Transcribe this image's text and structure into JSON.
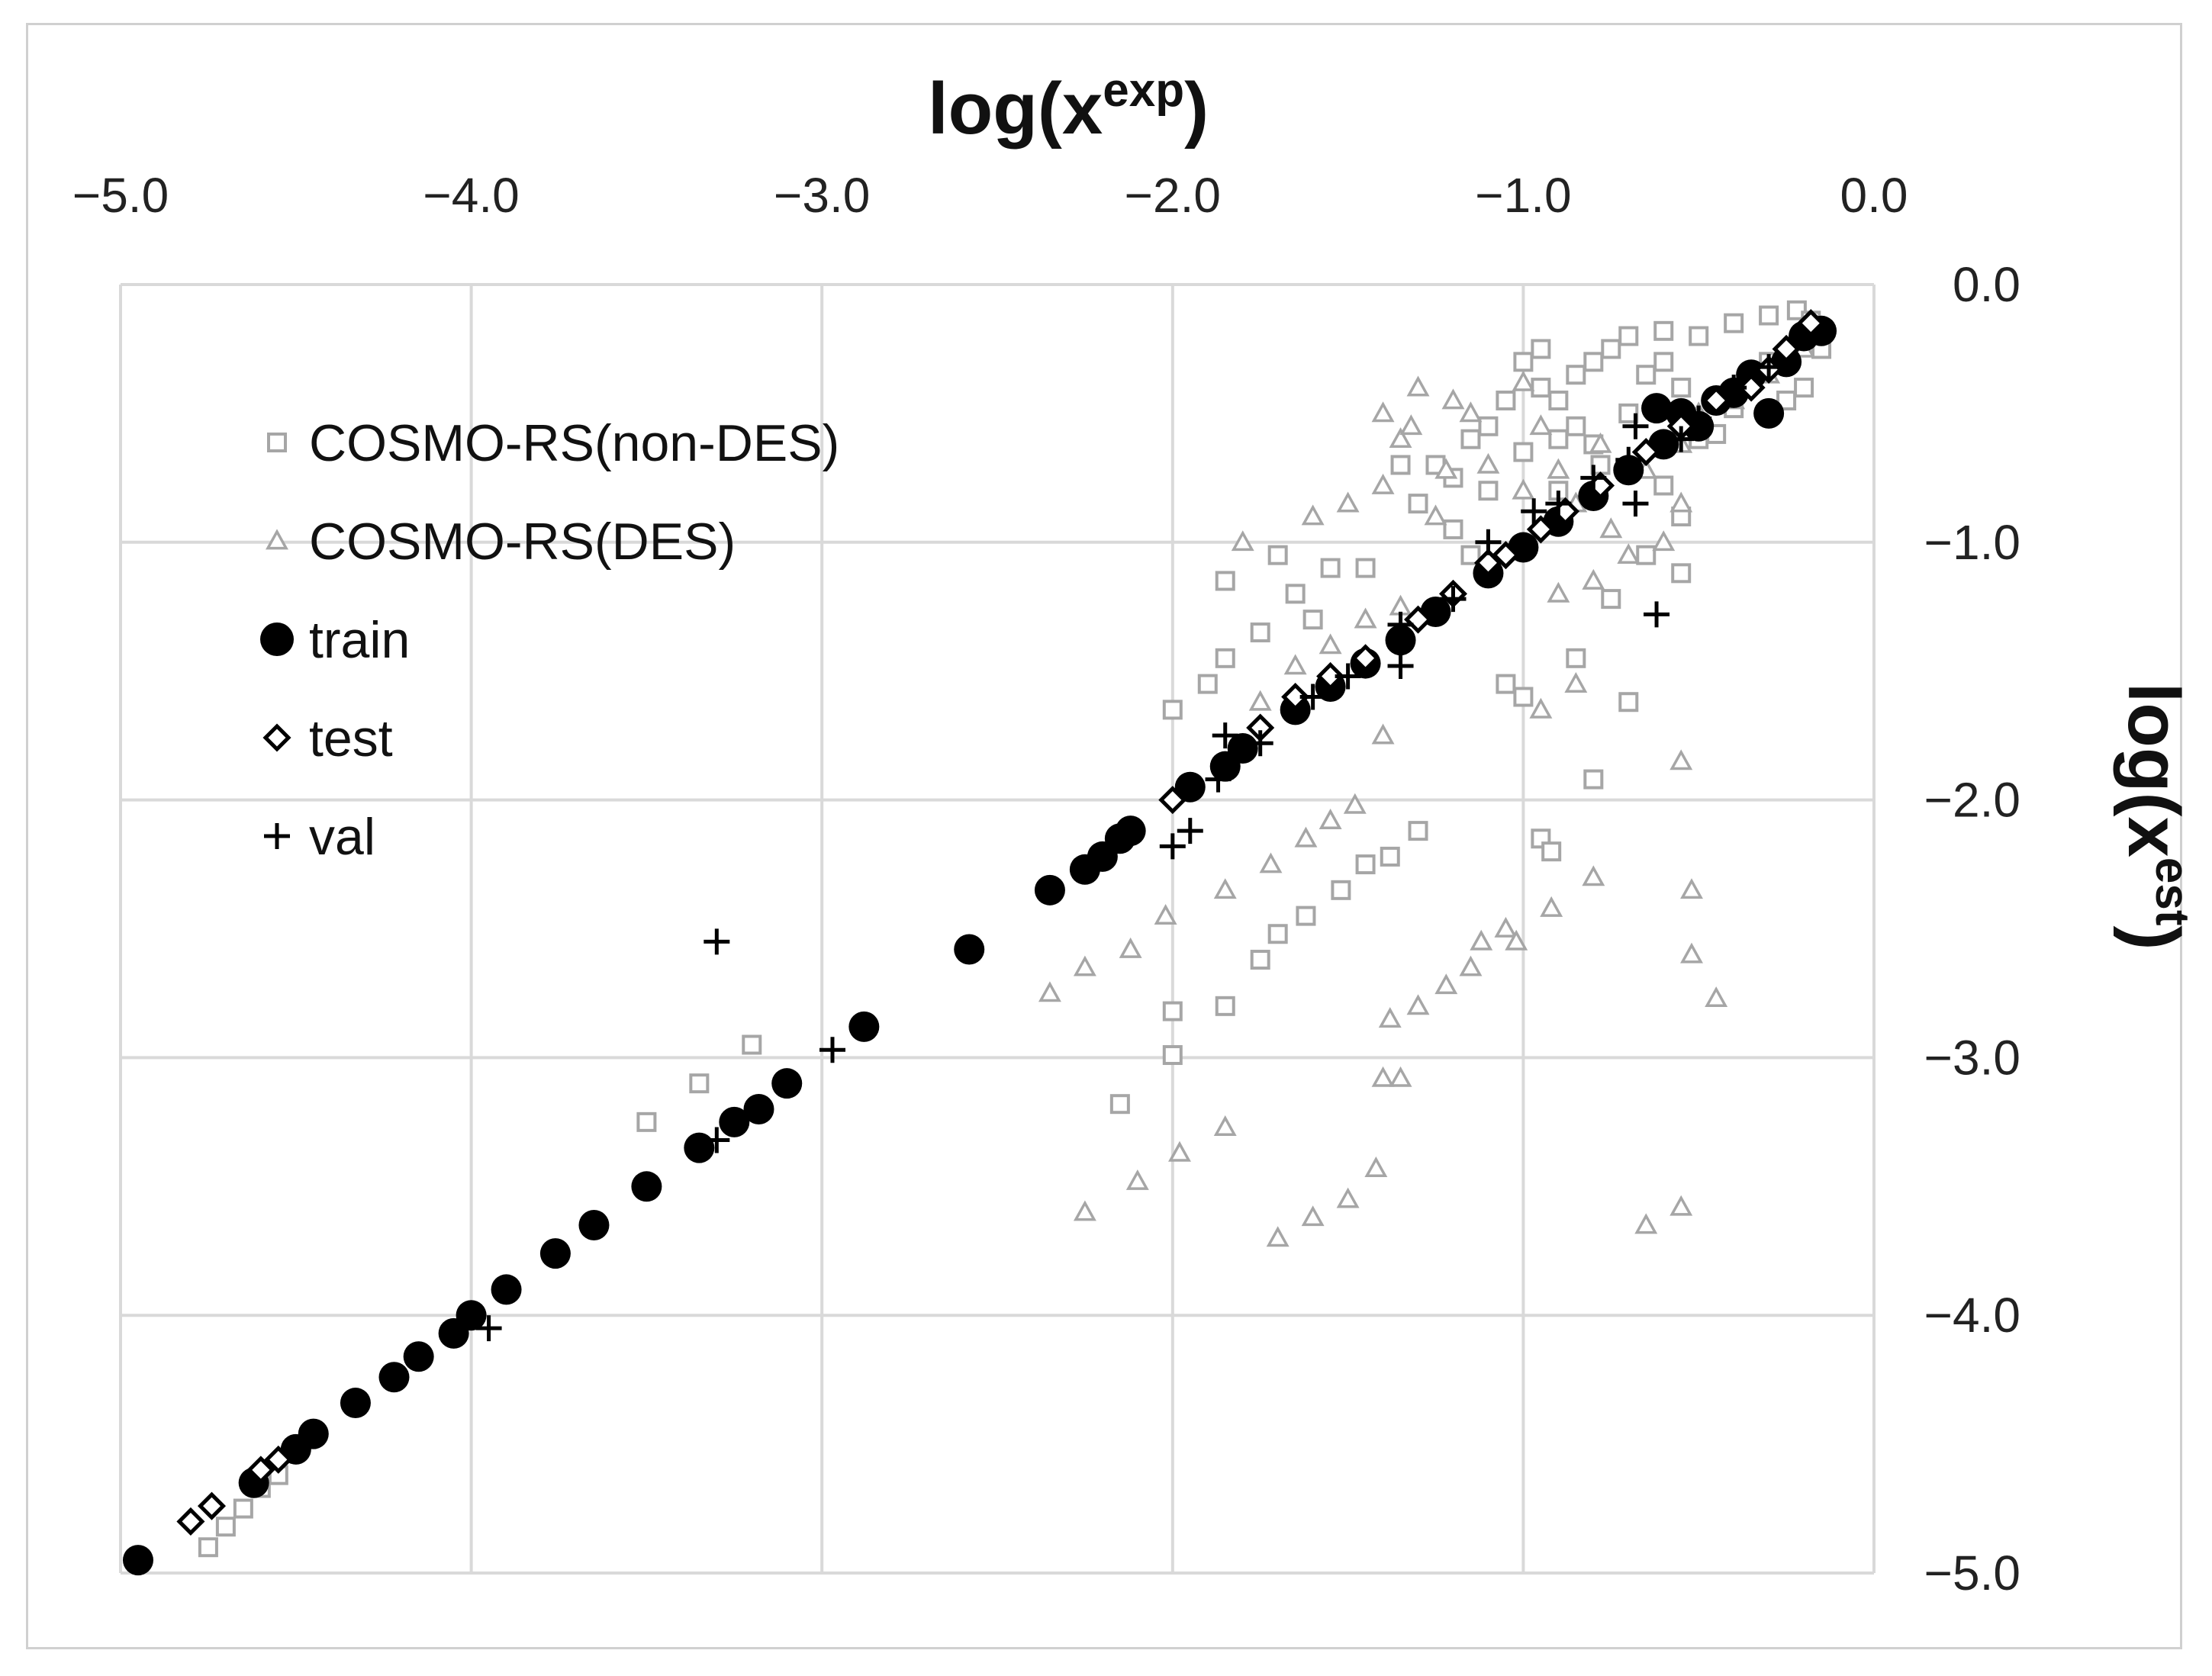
{
  "chart_data": {
    "type": "scatter",
    "title": "",
    "xlabel_base": "log(x",
    "xlabel_sup": "exp",
    "xlabel_end": ")",
    "ylabel_base": "log(x",
    "ylabel_sup": "est",
    "ylabel_end": ")",
    "xlim": [
      -5.0,
      0.0
    ],
    "ylim": [
      -5.0,
      0.0
    ],
    "grid": true,
    "x_axis_position": "top",
    "y_axis_position": "right",
    "x_ticks": [
      {
        "value": -5.0,
        "label": "−5.0"
      },
      {
        "value": -4.0,
        "label": "−4.0"
      },
      {
        "value": -3.0,
        "label": "−3.0"
      },
      {
        "value": -2.0,
        "label": "−2.0"
      },
      {
        "value": -1.0,
        "label": "−1.0"
      },
      {
        "value": 0.0,
        "label": "0.0"
      }
    ],
    "y_ticks": [
      {
        "value": 0.0,
        "label": "0.0"
      },
      {
        "value": -1.0,
        "label": "−1.0"
      },
      {
        "value": -2.0,
        "label": "−2.0"
      },
      {
        "value": -3.0,
        "label": "−3.0"
      },
      {
        "value": -4.0,
        "label": "−4.0"
      },
      {
        "value": -5.0,
        "label": "−5.0"
      }
    ],
    "legend_position": "top-left",
    "series": [
      {
        "name": "COSMO-RS(non-DES)",
        "marker": "square-open",
        "color": "#a6a6a6",
        "points": [
          [
            -4.75,
            -4.9
          ],
          [
            -4.7,
            -4.82
          ],
          [
            -4.65,
            -4.75
          ],
          [
            -4.6,
            -4.67
          ],
          [
            -4.55,
            -4.62
          ],
          [
            -3.5,
            -3.25
          ],
          [
            -3.35,
            -3.1
          ],
          [
            -3.2,
            -2.95
          ],
          [
            -2.15,
            -3.18
          ],
          [
            -2.0,
            -2.99
          ],
          [
            -2.0,
            -2.82
          ],
          [
            -1.85,
            -2.8
          ],
          [
            -1.75,
            -2.62
          ],
          [
            -1.7,
            -2.52
          ],
          [
            -1.62,
            -2.45
          ],
          [
            -1.52,
            -2.35
          ],
          [
            -1.45,
            -2.25
          ],
          [
            -1.38,
            -2.22
          ],
          [
            -1.3,
            -2.12
          ],
          [
            -0.95,
            -2.15
          ],
          [
            -0.92,
            -2.2
          ],
          [
            -0.8,
            -1.92
          ],
          [
            -0.7,
            -1.62
          ],
          [
            -1.0,
            -1.6
          ],
          [
            -1.05,
            -1.55
          ],
          [
            -0.85,
            -1.45
          ],
          [
            -2.0,
            -1.65
          ],
          [
            -1.9,
            -1.55
          ],
          [
            -1.85,
            -1.45
          ],
          [
            -1.75,
            -1.35
          ],
          [
            -1.6,
            -1.3
          ],
          [
            -1.65,
            -1.2
          ],
          [
            -1.85,
            -1.15
          ],
          [
            -1.7,
            -1.05
          ],
          [
            -1.55,
            -1.1
          ],
          [
            -1.45,
            -1.1
          ],
          [
            -0.75,
            -1.22
          ],
          [
            -0.55,
            -1.12
          ],
          [
            -0.65,
            -1.05
          ],
          [
            -1.1,
            -0.8
          ],
          [
            -1.2,
            -0.75
          ],
          [
            -1.3,
            -0.85
          ],
          [
            -1.25,
            -0.7
          ],
          [
            -1.35,
            -0.7
          ],
          [
            -1.0,
            -0.65
          ],
          [
            -0.9,
            -0.6
          ],
          [
            -1.1,
            -0.55
          ],
          [
            -1.05,
            -0.45
          ],
          [
            -0.95,
            -0.4
          ],
          [
            -0.85,
            -0.35
          ],
          [
            -0.8,
            -0.3
          ],
          [
            -0.75,
            -0.25
          ],
          [
            -0.7,
            -0.2
          ],
          [
            -0.6,
            -0.18
          ],
          [
            -0.5,
            -0.2
          ],
          [
            -0.4,
            -0.15
          ],
          [
            -0.3,
            -0.12
          ],
          [
            -0.22,
            -0.1
          ],
          [
            -0.18,
            -0.14
          ],
          [
            -1.0,
            -0.3
          ],
          [
            -0.95,
            -0.25
          ],
          [
            -0.9,
            -0.45
          ],
          [
            -0.85,
            -0.55
          ],
          [
            -0.8,
            -0.62
          ],
          [
            -0.7,
            -0.5
          ],
          [
            -0.65,
            -0.35
          ],
          [
            -0.6,
            -0.3
          ],
          [
            -0.55,
            -0.4
          ],
          [
            -0.5,
            -0.6
          ],
          [
            -0.45,
            -0.58
          ],
          [
            -0.4,
            -0.48
          ],
          [
            -0.35,
            -0.38
          ],
          [
            -0.3,
            -0.3
          ],
          [
            -0.25,
            -0.45
          ],
          [
            -0.2,
            -0.4
          ],
          [
            -0.15,
            -0.25
          ],
          [
            -1.15,
            -0.6
          ],
          [
            -1.2,
            -0.95
          ],
          [
            -1.15,
            -1.05
          ],
          [
            -0.9,
            -0.8
          ],
          [
            -0.78,
            -0.7
          ],
          [
            -0.6,
            -0.78
          ],
          [
            -0.55,
            -0.9
          ]
        ]
      },
      {
        "name": "COSMO-RS(DES)",
        "marker": "triangle-open",
        "color": "#a6a6a6",
        "points": [
          [
            -2.25,
            -3.6
          ],
          [
            -2.1,
            -3.48
          ],
          [
            -1.98,
            -3.37
          ],
          [
            -1.85,
            -3.27
          ],
          [
            -1.7,
            -3.7
          ],
          [
            -1.6,
            -3.62
          ],
          [
            -1.5,
            -3.55
          ],
          [
            -1.42,
            -3.43
          ],
          [
            -0.65,
            -3.65
          ],
          [
            -0.55,
            -3.58
          ],
          [
            -2.35,
            -2.75
          ],
          [
            -2.25,
            -2.65
          ],
          [
            -2.12,
            -2.58
          ],
          [
            -2.02,
            -2.45
          ],
          [
            -1.4,
            -3.08
          ],
          [
            -1.38,
            -2.85
          ],
          [
            -1.35,
            -3.08
          ],
          [
            -1.3,
            -2.8
          ],
          [
            -1.22,
            -2.72
          ],
          [
            -1.15,
            -2.65
          ],
          [
            -1.12,
            -2.55
          ],
          [
            -1.05,
            -2.5
          ],
          [
            -1.02,
            -2.55
          ],
          [
            -0.92,
            -2.42
          ],
          [
            -0.8,
            -2.3
          ],
          [
            -0.52,
            -2.35
          ],
          [
            -0.52,
            -2.6
          ],
          [
            -0.45,
            -2.77
          ],
          [
            -1.85,
            -2.35
          ],
          [
            -1.72,
            -2.25
          ],
          [
            -1.62,
            -2.15
          ],
          [
            -1.55,
            -2.08
          ],
          [
            -1.48,
            -2.02
          ],
          [
            -0.55,
            -1.85
          ],
          [
            -0.95,
            -1.65
          ],
          [
            -0.85,
            -1.55
          ],
          [
            -1.75,
            -1.62
          ],
          [
            -1.65,
            -1.48
          ],
          [
            -1.55,
            -1.4
          ],
          [
            -1.45,
            -1.3
          ],
          [
            -1.35,
            -1.25
          ],
          [
            -0.9,
            -1.2
          ],
          [
            -0.8,
            -1.15
          ],
          [
            -0.7,
            -1.05
          ],
          [
            -0.6,
            -1.0
          ],
          [
            -0.55,
            -0.85
          ],
          [
            -1.4,
            -1.75
          ],
          [
            -1.8,
            -1.0
          ],
          [
            -1.6,
            -0.9
          ],
          [
            -1.5,
            -0.85
          ],
          [
            -1.4,
            -0.78
          ],
          [
            -1.35,
            -0.6
          ],
          [
            -1.32,
            -0.55
          ],
          [
            -1.15,
            -0.5
          ],
          [
            -1.4,
            -0.5
          ],
          [
            -1.2,
            -0.45
          ],
          [
            -1.3,
            -0.4
          ],
          [
            -1.0,
            -0.38
          ],
          [
            -0.95,
            -0.55
          ],
          [
            -0.85,
            -0.85
          ],
          [
            -0.75,
            -0.95
          ],
          [
            -0.65,
            -0.72
          ],
          [
            -0.55,
            -0.62
          ],
          [
            -0.5,
            -0.5
          ],
          [
            -0.4,
            -0.45
          ],
          [
            -0.3,
            -0.35
          ],
          [
            -0.2,
            -0.25
          ],
          [
            -1.1,
            -0.7
          ],
          [
            -1.0,
            -0.8
          ],
          [
            -0.9,
            -0.72
          ],
          [
            -0.78,
            -0.62
          ],
          [
            -1.22,
            -0.72
          ],
          [
            -1.25,
            -0.9
          ]
        ]
      },
      {
        "name": "train",
        "marker": "circle-filled",
        "color": "#000000",
        "points": [
          [
            -4.95,
            -4.95
          ],
          [
            -4.62,
            -4.65
          ],
          [
            -4.5,
            -4.52
          ],
          [
            -4.45,
            -4.46
          ],
          [
            -4.33,
            -4.34
          ],
          [
            -4.22,
            -4.24
          ],
          [
            -4.15,
            -4.16
          ],
          [
            -4.05,
            -4.07
          ],
          [
            -4.0,
            -4.0
          ],
          [
            -3.9,
            -3.9
          ],
          [
            -3.76,
            -3.76
          ],
          [
            -3.65,
            -3.65
          ],
          [
            -3.5,
            -3.5
          ],
          [
            -3.35,
            -3.35
          ],
          [
            -3.25,
            -3.25
          ],
          [
            -3.18,
            -3.2
          ],
          [
            -3.1,
            -3.1
          ],
          [
            -2.88,
            -2.88
          ],
          [
            -2.58,
            -2.58
          ],
          [
            -2.35,
            -2.35
          ],
          [
            -2.25,
            -2.27
          ],
          [
            -2.2,
            -2.22
          ],
          [
            -2.15,
            -2.15
          ],
          [
            -2.12,
            -2.12
          ],
          [
            -1.95,
            -1.95
          ],
          [
            -1.85,
            -1.87
          ],
          [
            -1.8,
            -1.8
          ],
          [
            -1.65,
            -1.65
          ],
          [
            -1.55,
            -1.56
          ],
          [
            -1.45,
            -1.47
          ],
          [
            -1.35,
            -1.38
          ],
          [
            -1.25,
            -1.27
          ],
          [
            -1.1,
            -1.12
          ],
          [
            -1.0,
            -1.02
          ],
          [
            -0.9,
            -0.92
          ],
          [
            -0.8,
            -0.82
          ],
          [
            -0.7,
            -0.72
          ],
          [
            -0.6,
            -0.62
          ],
          [
            -0.55,
            -0.5
          ],
          [
            -0.45,
            -0.45
          ],
          [
            -0.35,
            -0.35
          ],
          [
            -0.25,
            -0.3
          ],
          [
            -0.2,
            -0.2
          ],
          [
            -0.15,
            -0.18
          ],
          [
            -0.62,
            -0.48
          ],
          [
            -0.5,
            -0.55
          ],
          [
            -0.4,
            -0.42
          ],
          [
            -0.3,
            -0.5
          ]
        ]
      },
      {
        "name": "test",
        "marker": "diamond-open",
        "color": "#000000",
        "points": [
          [
            -4.8,
            -4.8
          ],
          [
            -4.74,
            -4.74
          ],
          [
            -4.6,
            -4.6
          ],
          [
            -4.55,
            -4.56
          ],
          [
            -2.0,
            -2.0
          ],
          [
            -1.75,
            -1.72
          ],
          [
            -1.65,
            -1.6
          ],
          [
            -1.55,
            -1.52
          ],
          [
            -1.45,
            -1.45
          ],
          [
            -1.3,
            -1.3
          ],
          [
            -1.2,
            -1.2
          ],
          [
            -1.1,
            -1.08
          ],
          [
            -1.05,
            -1.05
          ],
          [
            -0.95,
            -0.95
          ],
          [
            -0.88,
            -0.88
          ],
          [
            -0.78,
            -0.78
          ],
          [
            -0.65,
            -0.65
          ],
          [
            -0.55,
            -0.55
          ],
          [
            -0.45,
            -0.45
          ],
          [
            -0.35,
            -0.4
          ],
          [
            -0.3,
            -0.33
          ],
          [
            -0.25,
            -0.25
          ],
          [
            -0.18,
            -0.15
          ]
        ]
      },
      {
        "name": "val",
        "marker": "plus",
        "color": "#000000",
        "points": [
          [
            -3.95,
            -4.05
          ],
          [
            -3.3,
            -3.32
          ],
          [
            -3.3,
            -2.55
          ],
          [
            -2.97,
            -2.97
          ],
          [
            -2.0,
            -2.18
          ],
          [
            -1.95,
            -2.12
          ],
          [
            -1.87,
            -1.92
          ],
          [
            -1.85,
            -1.75
          ],
          [
            -1.75,
            -1.78
          ],
          [
            -1.6,
            -1.6
          ],
          [
            -1.5,
            -1.52
          ],
          [
            -1.35,
            -1.48
          ],
          [
            -1.35,
            -1.32
          ],
          [
            -1.2,
            -1.22
          ],
          [
            -1.1,
            -1.0
          ],
          [
            -0.97,
            -0.88
          ],
          [
            -0.9,
            -0.85
          ],
          [
            -0.8,
            -0.75
          ],
          [
            -0.7,
            -0.68
          ],
          [
            -0.68,
            -0.85
          ],
          [
            -0.62,
            -1.28
          ],
          [
            -0.68,
            -0.55
          ],
          [
            -0.55,
            -0.6
          ],
          [
            -0.5,
            -0.52
          ],
          [
            -0.4,
            -0.4
          ],
          [
            -0.3,
            -0.32
          ]
        ]
      }
    ]
  }
}
